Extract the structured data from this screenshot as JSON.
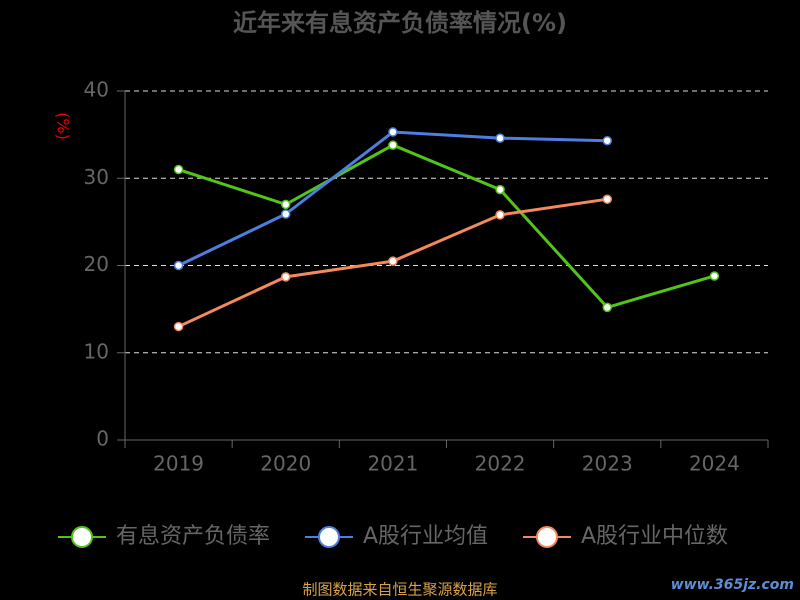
{
  "chart_data": {
    "type": "line",
    "title": "近年来有息资产负债率情况(%)",
    "y_label": "(%)",
    "categories": [
      "2019",
      "2020",
      "2021",
      "2022",
      "2023",
      "2024"
    ],
    "series": [
      {
        "name": "有息资产负债率",
        "color": "#52c41a",
        "values": [
          31.0,
          27.0,
          33.8,
          28.7,
          15.2,
          18.8
        ]
      },
      {
        "name": "A股行业均值",
        "color": "#4e7fe0",
        "values": [
          20.0,
          25.9,
          35.3,
          34.6,
          34.3,
          null
        ]
      },
      {
        "name": "A股行业中位数",
        "color": "#f4895f",
        "values": [
          13.0,
          18.7,
          20.5,
          25.8,
          27.6,
          null
        ]
      }
    ],
    "ylim": [
      0,
      40
    ],
    "yticks": [
      0,
      10,
      20,
      30,
      40
    ],
    "grid": true,
    "source": "制图数据来自恒生聚源数据库",
    "watermark": "www.365jz.com"
  }
}
